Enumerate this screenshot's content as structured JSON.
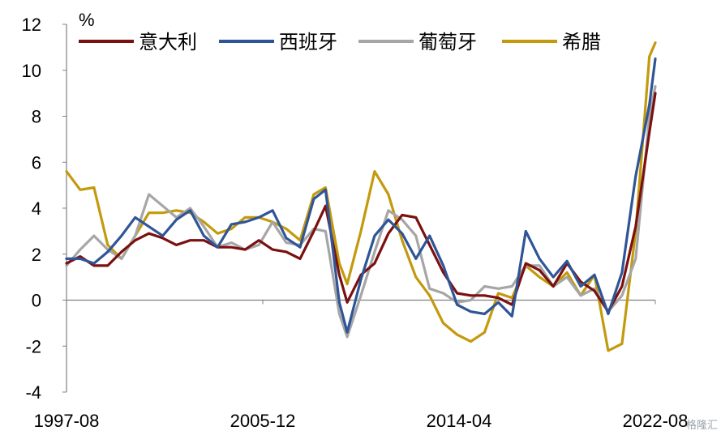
{
  "chart_data": {
    "type": "line",
    "unit_label": "%",
    "ylim": [
      -4,
      12
    ],
    "y_ticks": [
      -4,
      -2,
      0,
      2,
      4,
      6,
      8,
      10,
      12
    ],
    "x_tick_labels": [
      "1997-08",
      "2005-12",
      "2014-04",
      "2022-08"
    ],
    "x_range": [
      "1997-08",
      "2022-08"
    ],
    "grid": false,
    "legend_placement": "top",
    "series": [
      {
        "name": "意大利",
        "color": "#7b1010",
        "points": [
          [
            "1997-08",
            1.6
          ],
          [
            "1998-03",
            1.9
          ],
          [
            "1998-10",
            1.5
          ],
          [
            "1999-05",
            1.5
          ],
          [
            "1999-12",
            2.1
          ],
          [
            "2000-07",
            2.6
          ],
          [
            "2001-02",
            2.9
          ],
          [
            "2001-09",
            2.7
          ],
          [
            "2002-04",
            2.4
          ],
          [
            "2002-11",
            2.6
          ],
          [
            "2003-06",
            2.6
          ],
          [
            "2004-01",
            2.3
          ],
          [
            "2004-08",
            2.3
          ],
          [
            "2005-03",
            2.2
          ],
          [
            "2005-10",
            2.6
          ],
          [
            "2006-05",
            2.2
          ],
          [
            "2006-12",
            2.1
          ],
          [
            "2007-07",
            1.8
          ],
          [
            "2008-02",
            3.0
          ],
          [
            "2008-08",
            4.1
          ],
          [
            "2009-03",
            1.1
          ],
          [
            "2009-07",
            -0.1
          ],
          [
            "2010-02",
            1.1
          ],
          [
            "2010-09",
            1.6
          ],
          [
            "2011-04",
            2.9
          ],
          [
            "2011-11",
            3.7
          ],
          [
            "2012-06",
            3.6
          ],
          [
            "2013-01",
            2.4
          ],
          [
            "2013-08",
            1.2
          ],
          [
            "2014-03",
            0.3
          ],
          [
            "2014-10",
            0.2
          ],
          [
            "2015-05",
            0.2
          ],
          [
            "2015-12",
            0.1
          ],
          [
            "2016-07",
            -0.2
          ],
          [
            "2017-02",
            1.6
          ],
          [
            "2017-09",
            1.3
          ],
          [
            "2018-04",
            0.6
          ],
          [
            "2018-11",
            1.6
          ],
          [
            "2019-06",
            0.8
          ],
          [
            "2020-01",
            0.4
          ],
          [
            "2020-08",
            -0.5
          ],
          [
            "2021-03",
            0.6
          ],
          [
            "2021-10",
            3.2
          ],
          [
            "2022-05",
            7.3
          ],
          [
            "2022-08",
            9.0
          ]
        ]
      },
      {
        "name": "西班牙",
        "color": "#2f5597",
        "points": [
          [
            "1997-08",
            1.8
          ],
          [
            "1998-03",
            1.8
          ],
          [
            "1998-10",
            1.6
          ],
          [
            "1999-05",
            2.1
          ],
          [
            "1999-12",
            2.8
          ],
          [
            "2000-07",
            3.6
          ],
          [
            "2001-02",
            3.2
          ],
          [
            "2001-09",
            2.8
          ],
          [
            "2002-04",
            3.5
          ],
          [
            "2002-11",
            3.9
          ],
          [
            "2003-06",
            2.8
          ],
          [
            "2004-01",
            2.3
          ],
          [
            "2004-08",
            3.3
          ],
          [
            "2005-03",
            3.4
          ],
          [
            "2005-10",
            3.6
          ],
          [
            "2006-05",
            3.9
          ],
          [
            "2006-12",
            2.7
          ],
          [
            "2007-07",
            2.3
          ],
          [
            "2008-02",
            4.4
          ],
          [
            "2008-08",
            4.8
          ],
          [
            "2009-03",
            -0.1
          ],
          [
            "2009-07",
            -1.4
          ],
          [
            "2010-02",
            0.9
          ],
          [
            "2010-09",
            2.8
          ],
          [
            "2011-04",
            3.5
          ],
          [
            "2011-11",
            2.9
          ],
          [
            "2012-06",
            1.8
          ],
          [
            "2013-01",
            2.8
          ],
          [
            "2013-08",
            1.5
          ],
          [
            "2014-03",
            -0.2
          ],
          [
            "2014-10",
            -0.5
          ],
          [
            "2015-05",
            -0.6
          ],
          [
            "2015-12",
            -0.1
          ],
          [
            "2016-07",
            -0.7
          ],
          [
            "2017-02",
            3.0
          ],
          [
            "2017-09",
            1.8
          ],
          [
            "2018-04",
            1.0
          ],
          [
            "2018-11",
            1.7
          ],
          [
            "2019-06",
            0.6
          ],
          [
            "2020-01",
            1.1
          ],
          [
            "2020-08",
            -0.6
          ],
          [
            "2021-03",
            1.2
          ],
          [
            "2021-10",
            5.4
          ],
          [
            "2022-05",
            8.5
          ],
          [
            "2022-08",
            10.5
          ]
        ]
      },
      {
        "name": "葡萄牙",
        "color": "#a6a6a6",
        "points": [
          [
            "1997-08",
            1.5
          ],
          [
            "1998-03",
            2.2
          ],
          [
            "1998-10",
            2.8
          ],
          [
            "1999-05",
            2.2
          ],
          [
            "1999-12",
            1.8
          ],
          [
            "2000-07",
            2.8
          ],
          [
            "2001-02",
            4.6
          ],
          [
            "2001-09",
            4.1
          ],
          [
            "2002-04",
            3.6
          ],
          [
            "2002-11",
            4.0
          ],
          [
            "2003-06",
            3.2
          ],
          [
            "2004-01",
            2.3
          ],
          [
            "2004-08",
            2.5
          ],
          [
            "2005-03",
            2.2
          ],
          [
            "2005-10",
            2.4
          ],
          [
            "2006-05",
            3.4
          ],
          [
            "2006-12",
            2.5
          ],
          [
            "2007-07",
            2.4
          ],
          [
            "2008-02",
            3.1
          ],
          [
            "2008-08",
            3.0
          ],
          [
            "2009-03",
            -0.6
          ],
          [
            "2009-07",
            -1.6
          ],
          [
            "2010-02",
            0.2
          ],
          [
            "2010-09",
            2.1
          ],
          [
            "2011-04",
            3.9
          ],
          [
            "2011-11",
            3.5
          ],
          [
            "2012-06",
            2.8
          ],
          [
            "2013-01",
            0.5
          ],
          [
            "2013-08",
            0.3
          ],
          [
            "2014-03",
            -0.1
          ],
          [
            "2014-10",
            0.0
          ],
          [
            "2015-05",
            0.6
          ],
          [
            "2015-12",
            0.5
          ],
          [
            "2016-07",
            0.6
          ],
          [
            "2017-02",
            1.5
          ],
          [
            "2017-09",
            1.5
          ],
          [
            "2018-04",
            0.6
          ],
          [
            "2018-11",
            1.0
          ],
          [
            "2019-06",
            0.2
          ],
          [
            "2020-01",
            0.5
          ],
          [
            "2020-08",
            -0.5
          ],
          [
            "2021-03",
            0.2
          ],
          [
            "2021-10",
            1.8
          ],
          [
            "2022-05",
            8.0
          ],
          [
            "2022-08",
            9.3
          ]
        ]
      },
      {
        "name": "希腊",
        "color": "#c39a0e",
        "points": [
          [
            "1997-08",
            5.6
          ],
          [
            "1998-03",
            4.8
          ],
          [
            "1998-10",
            4.9
          ],
          [
            "1999-05",
            2.4
          ],
          [
            "1999-12",
            1.8
          ],
          [
            "2000-07",
            2.8
          ],
          [
            "2001-02",
            3.8
          ],
          [
            "2001-09",
            3.8
          ],
          [
            "2002-04",
            3.9
          ],
          [
            "2002-11",
            3.8
          ],
          [
            "2003-06",
            3.4
          ],
          [
            "2004-01",
            2.9
          ],
          [
            "2004-08",
            3.1
          ],
          [
            "2005-03",
            3.6
          ],
          [
            "2005-10",
            3.6
          ],
          [
            "2006-05",
            3.4
          ],
          [
            "2006-12",
            3.1
          ],
          [
            "2007-07",
            2.6
          ],
          [
            "2008-02",
            4.6
          ],
          [
            "2008-08",
            4.9
          ],
          [
            "2009-03",
            1.6
          ],
          [
            "2009-07",
            0.7
          ],
          [
            "2010-02",
            3.0
          ],
          [
            "2010-09",
            5.6
          ],
          [
            "2011-04",
            4.6
          ],
          [
            "2011-11",
            2.6
          ],
          [
            "2012-06",
            1.0
          ],
          [
            "2013-01",
            0.2
          ],
          [
            "2013-08",
            -1.0
          ],
          [
            "2014-03",
            -1.5
          ],
          [
            "2014-10",
            -1.8
          ],
          [
            "2015-05",
            -1.4
          ],
          [
            "2015-12",
            0.3
          ],
          [
            "2016-07",
            0.1
          ],
          [
            "2017-02",
            1.5
          ],
          [
            "2017-09",
            1.0
          ],
          [
            "2018-04",
            0.6
          ],
          [
            "2018-11",
            1.2
          ],
          [
            "2019-06",
            0.2
          ],
          [
            "2020-01",
            1.1
          ],
          [
            "2020-08",
            -2.2
          ],
          [
            "2021-03",
            -1.9
          ],
          [
            "2021-10",
            3.0
          ],
          [
            "2022-05",
            10.6
          ],
          [
            "2022-08",
            11.2
          ]
        ]
      }
    ]
  },
  "watermark_text": "格隆汇"
}
